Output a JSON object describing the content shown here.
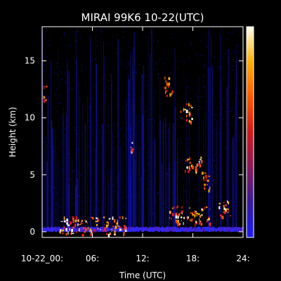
{
  "chart_data": {
    "type": "heatmap",
    "title": "MIRAI 99K6 10-22(UTC)",
    "xlabel": "Time (UTC)",
    "ylabel": "Height (km)",
    "xlim": [
      0,
      24
    ],
    "ylim": [
      -0.5,
      18
    ],
    "x_ticks": [
      0,
      6,
      12,
      18,
      24
    ],
    "x_tick_labels": [
      "10-22_00:",
      "06:",
      "12:",
      "18:",
      "24:"
    ],
    "y_ticks": [
      0,
      5,
      10,
      15
    ],
    "y_tick_labels": [
      "0",
      "5",
      "10",
      "15"
    ],
    "colorbar": {
      "position": "right",
      "colormap": [
        "#1a1aff",
        "#3a1a9a",
        "#8a1a5a",
        "#d01a1a",
        "#ff5a00",
        "#ffb000",
        "#fffff0"
      ]
    },
    "background_color": "#000000",
    "noise_color": "#1a1aff",
    "features": [
      {
        "name": "surface layer",
        "t_start": 0,
        "t_end": 24,
        "height": 0.3,
        "intensity": "low"
      },
      {
        "name": "low cloud near surface",
        "t_start": 2,
        "t_end": 10,
        "height": 0.6,
        "intensity": "high"
      },
      {
        "name": "cirrus",
        "t_start": 0.1,
        "t_end": 0.4,
        "height": 12.2,
        "intensity": "medium"
      },
      {
        "name": "cirrus",
        "t_start": 14.5,
        "t_end": 15.5,
        "height": 12.8,
        "intensity": "medium"
      },
      {
        "name": "cloud",
        "t_start": 16.5,
        "t_end": 18.0,
        "height": 10.5,
        "intensity": "high"
      },
      {
        "name": "cloud",
        "t_start": 10.5,
        "t_end": 11.0,
        "height": 7.5,
        "intensity": "high"
      },
      {
        "name": "cloud",
        "t_start": 17,
        "t_end": 19,
        "height": 6.0,
        "intensity": "high"
      },
      {
        "name": "cloud",
        "t_start": 19,
        "t_end": 20,
        "height": 4.5,
        "intensity": "medium"
      },
      {
        "name": "cloud",
        "t_start": 15,
        "t_end": 20,
        "height": 1.5,
        "intensity": "high"
      },
      {
        "name": "cloud",
        "t_start": 21,
        "t_end": 22.5,
        "height": 2.0,
        "intensity": "high"
      }
    ]
  }
}
